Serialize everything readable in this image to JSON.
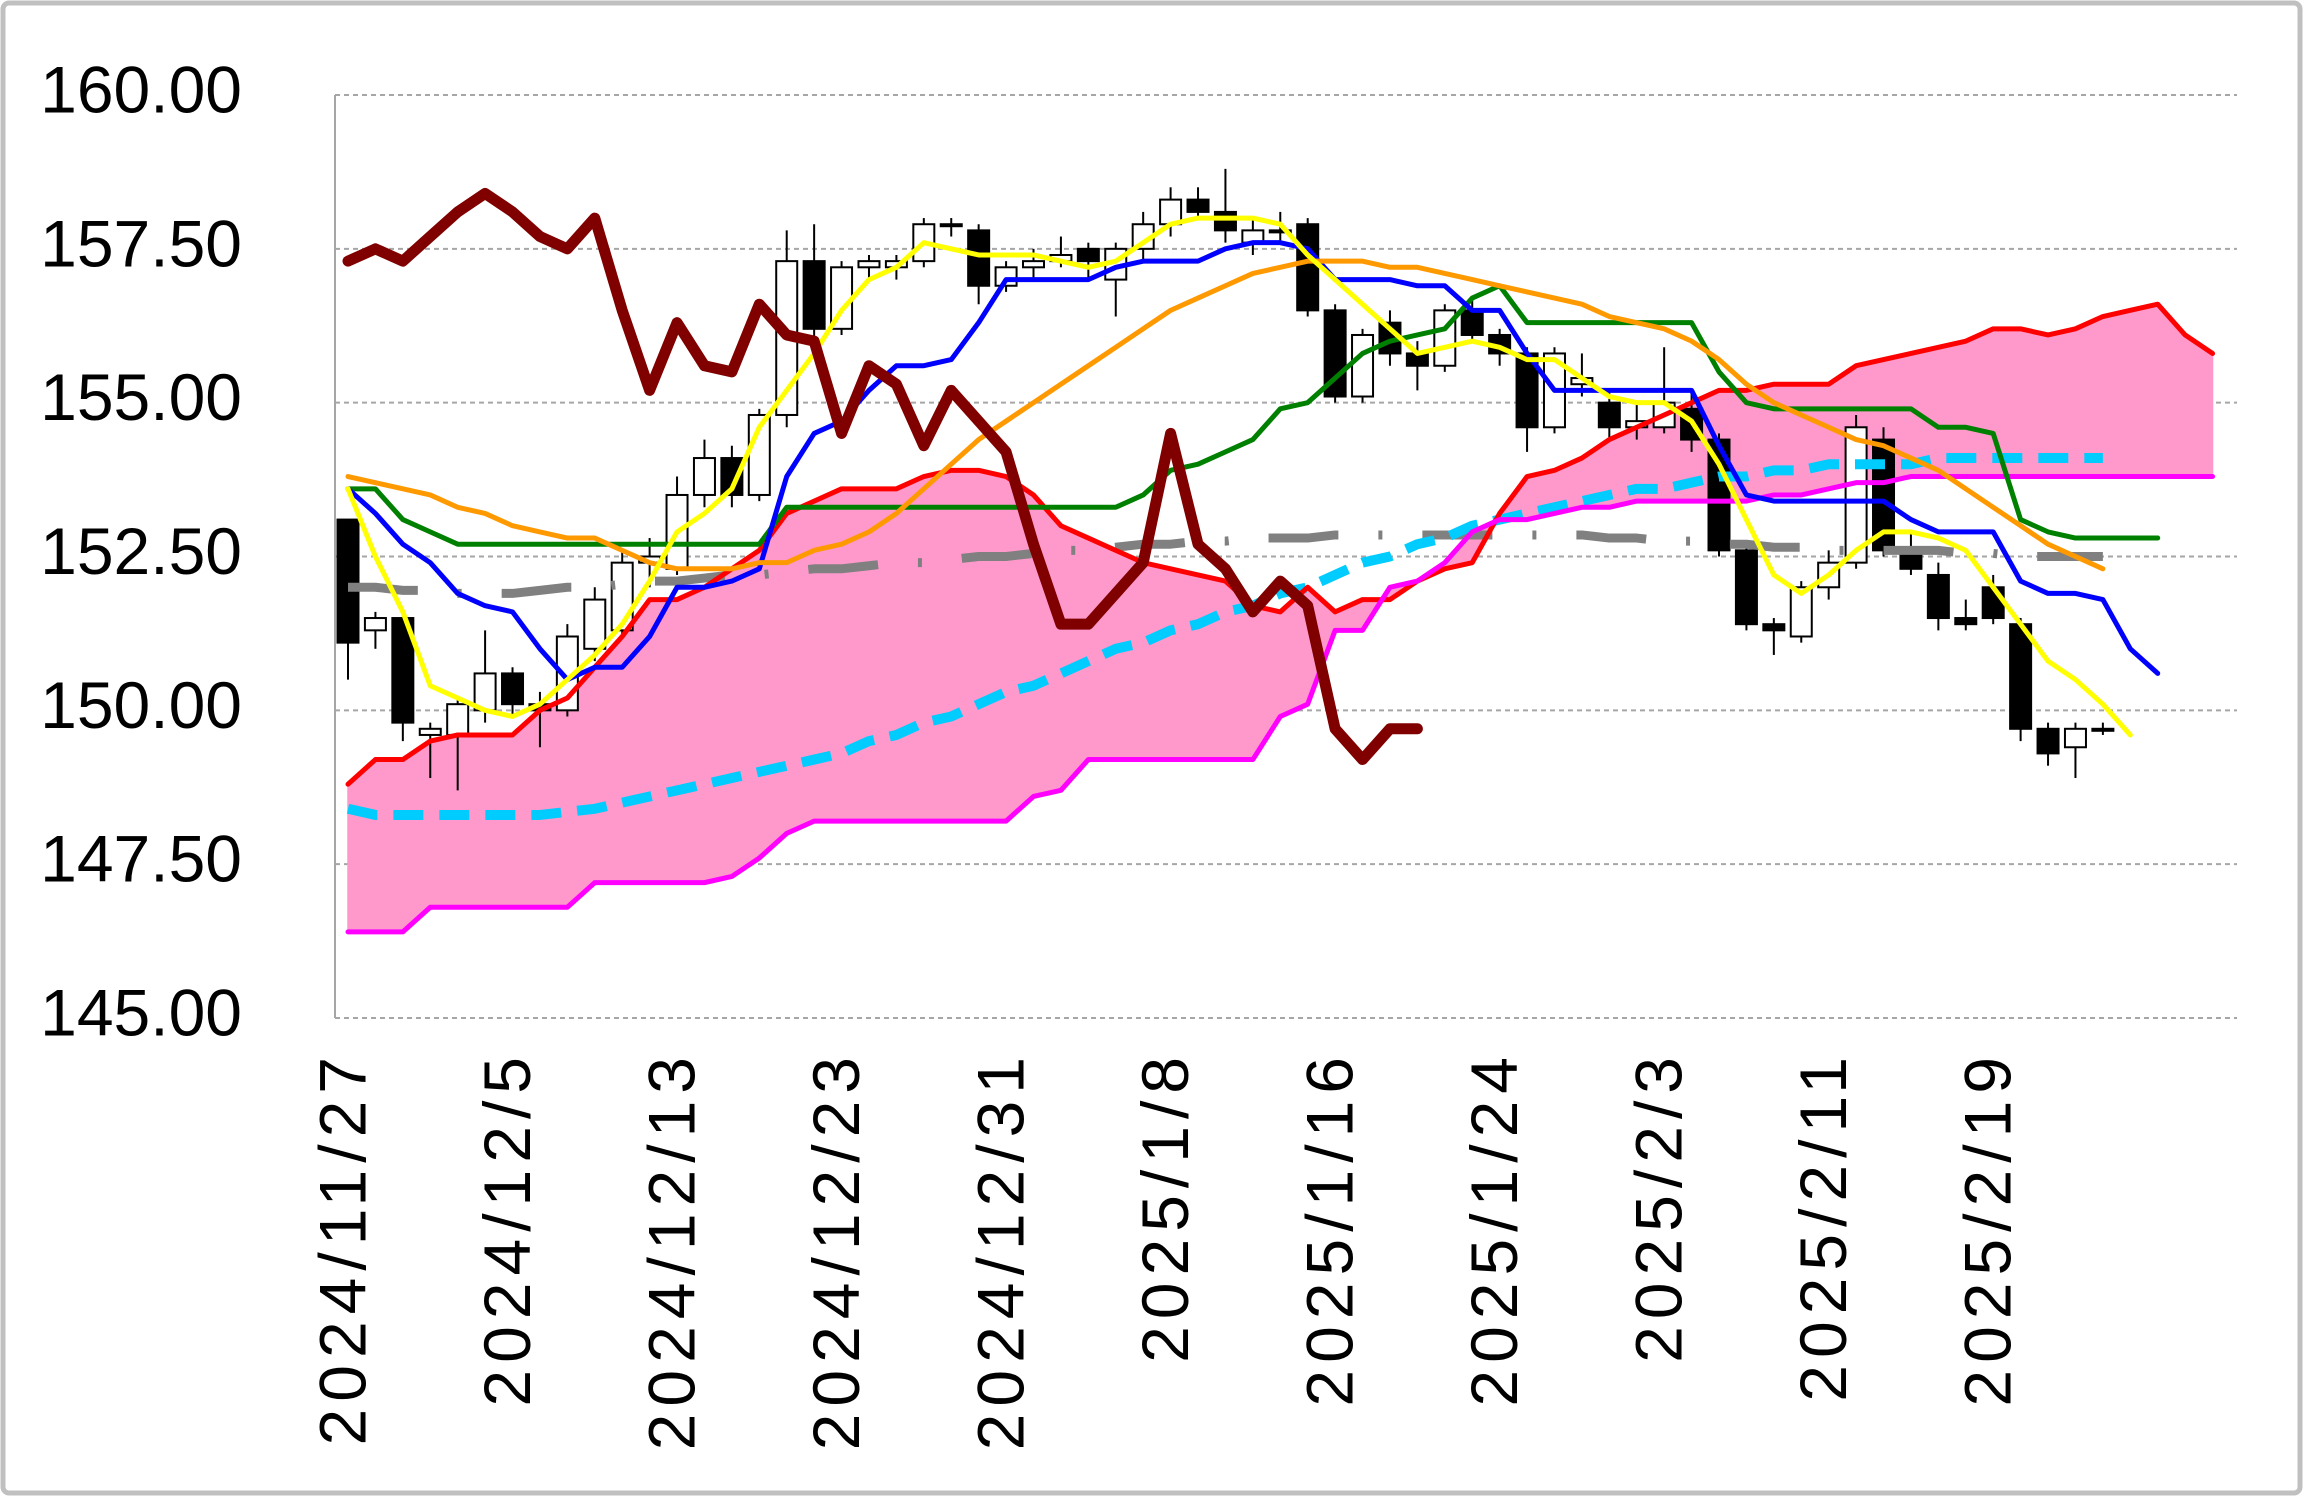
{
  "chart_data": {
    "type": "candlestick",
    "categories": [
      "2024/11/27",
      null,
      null,
      null,
      null,
      null,
      "2024/12/5",
      null,
      null,
      null,
      null,
      null,
      "2024/12/13",
      null,
      null,
      null,
      null,
      null,
      "2024/12/23",
      null,
      null,
      null,
      null,
      null,
      "2024/12/31",
      null,
      null,
      null,
      null,
      null,
      "2025/1/8",
      null,
      null,
      null,
      null,
      null,
      "2025/1/16",
      null,
      null,
      null,
      null,
      null,
      "2025/1/24",
      null,
      null,
      null,
      null,
      null,
      "2025/2/3",
      null,
      null,
      null,
      null,
      null,
      "2025/2/11",
      null,
      null,
      null,
      null,
      null,
      "2025/2/19",
      null,
      null,
      null,
      null,
      null,
      null,
      null,
      null
    ],
    "ylim": [
      145,
      160
    ],
    "yticks": [
      {
        "value": 145,
        "label": "145.00"
      },
      {
        "value": 147.5,
        "label": "147.50"
      },
      {
        "value": 150,
        "label": "150.00"
      },
      {
        "value": 152.5,
        "label": "152.50"
      },
      {
        "value": 155,
        "label": "155.00"
      },
      {
        "value": 157.5,
        "label": "157.50"
      },
      {
        "value": 160,
        "label": "160.00"
      }
    ],
    "grid": true,
    "cloud": {
      "color": "#ff99cc",
      "between": [
        3,
        2
      ]
    },
    "ohlc": {
      "open": [
        153.1,
        151.3,
        151.5,
        149.6,
        149.6,
        150.0,
        150.6,
        150.1,
        150.0,
        151.0,
        151.3,
        152.4,
        152.3,
        153.5,
        154.1,
        153.5,
        154.8,
        157.3,
        156.2,
        157.2,
        157.2,
        157.3,
        157.9,
        157.8,
        156.9,
        157.2,
        157.3,
        157.5,
        157.0,
        157.5,
        157.9,
        158.3,
        158.1,
        157.6,
        157.8,
        157.9,
        156.5,
        155.1,
        156.3,
        155.8,
        155.6,
        156.5,
        156.1,
        155.8,
        154.6,
        155.3,
        155.0,
        154.6,
        154.6,
        154.9,
        154.4,
        152.6,
        151.4,
        151.2,
        152.0,
        152.4,
        154.4,
        152.6,
        152.2,
        151.5,
        152.0,
        151.4,
        149.7,
        149.4,
        149.7,
        null,
        null,
        null,
        null
      ],
      "high": [
        153.1,
        151.6,
        151.5,
        149.8,
        150.2,
        151.3,
        150.7,
        150.3,
        151.4,
        152.0,
        152.6,
        152.8,
        153.8,
        154.4,
        154.3,
        154.9,
        157.8,
        157.9,
        157.3,
        157.4,
        157.4,
        158.0,
        158.0,
        157.9,
        157.3,
        157.5,
        157.7,
        157.6,
        157.6,
        158.1,
        158.5,
        158.5,
        158.8,
        158.0,
        158.1,
        158.0,
        156.6,
        156.2,
        156.5,
        156.0,
        156.6,
        156.7,
        156.2,
        155.9,
        155.9,
        155.8,
        155.2,
        155.0,
        155.9,
        155.2,
        154.5,
        152.7,
        151.5,
        152.1,
        152.6,
        154.8,
        154.6,
        152.9,
        152.4,
        151.8,
        152.2,
        151.5,
        149.8,
        149.8,
        149.8,
        null,
        null,
        null,
        null
      ],
      "low": [
        150.5,
        151.0,
        149.5,
        148.9,
        148.7,
        149.8,
        149.9,
        149.4,
        149.9,
        150.8,
        151.2,
        152.0,
        152.2,
        153.3,
        153.3,
        153.4,
        154.6,
        156.0,
        156.1,
        157.0,
        157.0,
        157.2,
        157.7,
        156.6,
        156.8,
        157.0,
        157.2,
        157.0,
        156.4,
        157.3,
        157.7,
        158.0,
        157.6,
        157.4,
        157.6,
        156.4,
        155.0,
        155.0,
        155.6,
        155.2,
        155.5,
        156.0,
        155.6,
        154.2,
        154.5,
        155.1,
        154.4,
        154.4,
        154.5,
        154.2,
        152.5,
        151.3,
        150.9,
        151.1,
        151.8,
        152.3,
        152.5,
        152.2,
        151.3,
        151.3,
        151.4,
        149.5,
        149.1,
        148.9,
        149.6,
        null,
        null,
        null,
        null
      ],
      "close": [
        151.1,
        151.5,
        149.8,
        149.7,
        150.1,
        150.6,
        150.1,
        150.0,
        151.2,
        151.8,
        152.4,
        152.5,
        153.5,
        154.1,
        153.5,
        154.8,
        157.3,
        156.2,
        157.2,
        157.3,
        157.3,
        157.9,
        157.9,
        156.9,
        157.2,
        157.3,
        157.4,
        157.3,
        157.5,
        157.9,
        158.3,
        158.1,
        157.8,
        157.8,
        157.8,
        156.5,
        155.1,
        156.1,
        155.8,
        155.6,
        156.5,
        156.1,
        155.8,
        154.6,
        155.8,
        155.4,
        154.6,
        154.7,
        155.0,
        154.4,
        152.6,
        151.4,
        151.3,
        152.0,
        152.4,
        154.6,
        152.6,
        152.3,
        151.5,
        151.4,
        151.5,
        149.7,
        149.3,
        149.7,
        149.7,
        null,
        null,
        null,
        null
      ]
    },
    "series": [
      {
        "color": "#808080",
        "linestyle": "dashdot",
        "values": [
          152.0,
          152.0,
          151.95,
          151.95,
          151.9,
          151.9,
          151.9,
          151.95,
          152.0,
          152.0,
          152.05,
          152.1,
          152.1,
          152.15,
          152.2,
          152.2,
          152.25,
          152.3,
          152.3,
          152.35,
          152.4,
          152.4,
          152.45,
          152.5,
          152.5,
          152.55,
          152.6,
          152.6,
          152.65,
          152.7,
          152.7,
          152.75,
          152.75,
          152.8,
          152.8,
          152.8,
          152.85,
          152.85,
          152.85,
          152.85,
          152.85,
          152.85,
          152.85,
          152.85,
          152.85,
          152.85,
          152.8,
          152.8,
          152.75,
          152.75,
          152.7,
          152.7,
          152.65,
          152.65,
          152.6,
          152.6,
          152.6,
          152.6,
          152.6,
          152.55,
          152.55,
          152.5,
          152.5,
          152.5,
          152.5,
          null,
          null,
          null,
          null
        ]
      },
      {
        "color": "#00ccff",
        "linestyle": "dashed",
        "values": [
          148.4,
          148.3,
          148.3,
          148.3,
          148.3,
          148.3,
          148.3,
          148.3,
          148.35,
          148.4,
          148.5,
          148.6,
          148.7,
          148.8,
          148.9,
          149.0,
          149.1,
          149.2,
          149.3,
          149.5,
          149.6,
          149.8,
          149.9,
          150.1,
          150.3,
          150.4,
          150.6,
          150.8,
          151.0,
          151.1,
          151.3,
          151.4,
          151.6,
          151.7,
          151.9,
          152.0,
          152.2,
          152.4,
          152.5,
          152.7,
          152.8,
          153.0,
          153.1,
          153.2,
          153.3,
          153.4,
          153.5,
          153.6,
          153.6,
          153.7,
          153.8,
          153.8,
          153.9,
          153.9,
          154.0,
          154.0,
          154.0,
          154.0,
          154.1,
          154.1,
          154.1,
          154.1,
          154.1,
          154.1,
          154.1,
          null,
          null,
          null,
          null
        ]
      },
      {
        "color": "#ff0000",
        "linestyle": "solid",
        "values": [
          148.8,
          149.2,
          149.2,
          149.5,
          149.6,
          149.6,
          149.6,
          150.0,
          150.2,
          150.7,
          151.2,
          151.8,
          151.8,
          152.0,
          152.3,
          152.6,
          153.2,
          153.4,
          153.6,
          153.6,
          153.6,
          153.8,
          153.9,
          153.9,
          153.8,
          153.5,
          153.0,
          152.8,
          152.6,
          152.4,
          152.3,
          152.2,
          152.1,
          151.7,
          151.6,
          152.0,
          151.6,
          151.8,
          151.8,
          152.1,
          152.3,
          152.4,
          153.2,
          153.8,
          153.9,
          154.1,
          154.4,
          154.6,
          154.8,
          155.0,
          155.2,
          155.2,
          155.3,
          155.3,
          155.3,
          155.6,
          155.7,
          155.8,
          155.9,
          156.0,
          156.2,
          156.2,
          156.1,
          156.2,
          156.4,
          156.5,
          156.6,
          156.1,
          155.8
        ]
      },
      {
        "color": "#ff00ff",
        "linestyle": "solid",
        "values": [
          146.4,
          146.4,
          146.4,
          146.8,
          146.8,
          146.8,
          146.8,
          146.8,
          146.8,
          147.2,
          147.2,
          147.2,
          147.2,
          147.2,
          147.3,
          147.6,
          148.0,
          148.2,
          148.2,
          148.2,
          148.2,
          148.2,
          148.2,
          148.2,
          148.2,
          148.6,
          148.7,
          149.2,
          149.2,
          149.2,
          149.2,
          149.2,
          149.2,
          149.2,
          149.9,
          150.1,
          151.3,
          151.3,
          152.0,
          152.1,
          152.4,
          152.9,
          153.1,
          153.1,
          153.2,
          153.3,
          153.3,
          153.4,
          153.4,
          153.4,
          153.4,
          153.4,
          153.5,
          153.5,
          153.6,
          153.7,
          153.7,
          153.8,
          153.8,
          153.8,
          153.8,
          153.8,
          153.8,
          153.8,
          153.8,
          153.8,
          153.8,
          153.8,
          153.8
        ]
      },
      {
        "color": "#008000",
        "linestyle": "solid",
        "values": [
          153.6,
          153.6,
          153.1,
          152.9,
          152.7,
          152.7,
          152.7,
          152.7,
          152.7,
          152.7,
          152.7,
          152.7,
          152.7,
          152.7,
          152.7,
          152.7,
          153.3,
          153.3,
          153.3,
          153.3,
          153.3,
          153.3,
          153.3,
          153.3,
          153.3,
          153.3,
          153.3,
          153.3,
          153.3,
          153.5,
          153.9,
          154.0,
          154.2,
          154.4,
          154.9,
          155.0,
          155.4,
          155.8,
          156.0,
          156.1,
          156.2,
          156.7,
          156.9,
          156.3,
          156.3,
          156.3,
          156.3,
          156.3,
          156.3,
          156.3,
          155.5,
          155.0,
          154.9,
          154.9,
          154.9,
          154.9,
          154.9,
          154.9,
          154.6,
          154.6,
          154.5,
          153.1,
          152.9,
          152.8,
          152.8,
          152.8,
          152.8,
          null,
          null
        ]
      },
      {
        "color": "#0000ff",
        "linestyle": "solid",
        "values": [
          153.6,
          153.2,
          152.7,
          152.4,
          151.9,
          151.7,
          151.6,
          151.0,
          150.5,
          150.7,
          150.7,
          151.2,
          152.0,
          152.0,
          152.1,
          152.3,
          153.8,
          154.5,
          154.7,
          155.2,
          155.6,
          155.6,
          155.7,
          156.3,
          157.0,
          157.0,
          157.0,
          157.0,
          157.2,
          157.3,
          157.3,
          157.3,
          157.5,
          157.6,
          157.6,
          157.5,
          157.0,
          157.0,
          157.0,
          156.9,
          156.9,
          156.5,
          156.5,
          155.8,
          155.2,
          155.2,
          155.2,
          155.2,
          155.2,
          155.2,
          154.3,
          153.5,
          153.4,
          153.4,
          153.4,
          153.4,
          153.4,
          153.1,
          152.9,
          152.9,
          152.9,
          152.1,
          151.9,
          151.9,
          151.8,
          151.0,
          150.6,
          null,
          null
        ]
      },
      {
        "color": "#ff9900",
        "linestyle": "solid",
        "values": [
          153.8,
          153.7,
          153.6,
          153.5,
          153.3,
          153.2,
          153.0,
          152.9,
          152.8,
          152.8,
          152.6,
          152.4,
          152.3,
          152.3,
          152.3,
          152.4,
          152.4,
          152.6,
          152.7,
          152.9,
          153.2,
          153.6,
          154.0,
          154.4,
          154.7,
          155.0,
          155.3,
          155.6,
          155.9,
          156.2,
          156.5,
          156.7,
          156.9,
          157.1,
          157.2,
          157.3,
          157.3,
          157.3,
          157.2,
          157.2,
          157.1,
          157.0,
          156.9,
          156.8,
          156.7,
          156.6,
          156.4,
          156.3,
          156.2,
          156.0,
          155.7,
          155.3,
          155.0,
          154.8,
          154.6,
          154.4,
          154.3,
          154.1,
          153.9,
          153.6,
          153.3,
          153.0,
          152.7,
          152.5,
          152.3,
          null,
          null,
          null,
          null
        ]
      },
      {
        "color": "#ffff00",
        "linestyle": "solid",
        "values": [
          153.6,
          152.5,
          151.6,
          150.4,
          150.2,
          150.0,
          149.9,
          150.1,
          150.5,
          150.9,
          151.4,
          152.1,
          152.9,
          153.2,
          153.6,
          154.6,
          155.2,
          155.8,
          156.5,
          157.0,
          157.2,
          157.6,
          157.5,
          157.4,
          157.4,
          157.4,
          157.3,
          157.2,
          157.3,
          157.6,
          157.9,
          158.0,
          158.0,
          158.0,
          157.9,
          157.4,
          157.0,
          156.6,
          156.2,
          155.8,
          155.9,
          156.0,
          155.9,
          155.7,
          155.7,
          155.4,
          155.1,
          155.0,
          155.0,
          154.7,
          154.0,
          153.1,
          152.2,
          151.9,
          152.2,
          152.6,
          152.9,
          152.9,
          152.8,
          152.6,
          152.0,
          151.4,
          150.8,
          150.5,
          150.1,
          149.6,
          null,
          null,
          null
        ]
      },
      {
        "color": "#800000",
        "linestyle": "thick",
        "values": [
          157.3,
          157.5,
          157.3,
          157.7,
          158.1,
          158.4,
          158.1,
          157.7,
          157.5,
          158.0,
          156.5,
          155.2,
          156.3,
          155.6,
          155.5,
          156.6,
          156.1,
          156.0,
          154.5,
          155.6,
          155.3,
          154.3,
          155.2,
          154.7,
          154.2,
          152.7,
          151.4,
          151.4,
          151.9,
          152.4,
          154.5,
          152.7,
          152.3,
          151.6,
          152.1,
          151.7,
          149.7,
          149.2,
          149.7,
          149.7,
          null,
          null,
          null,
          null,
          null,
          null,
          null,
          null,
          null,
          null,
          null,
          null,
          null,
          null,
          null,
          null,
          null,
          null,
          null,
          null,
          null,
          null,
          null,
          null,
          null,
          null,
          null,
          null,
          null
        ]
      }
    ]
  }
}
